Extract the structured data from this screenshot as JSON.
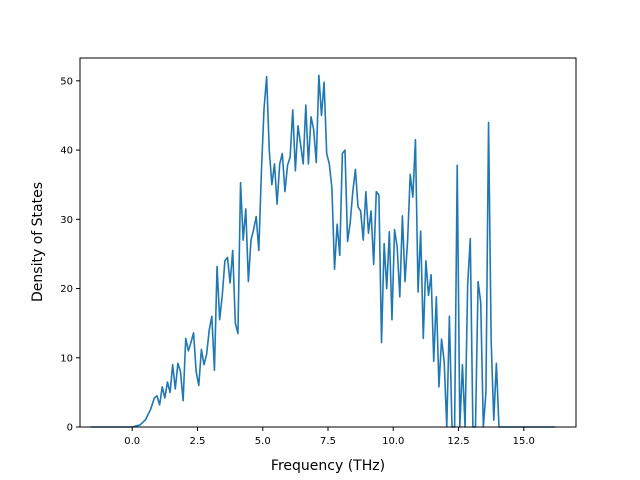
{
  "chart_data": {
    "type": "line",
    "title": "",
    "xlabel": "Frequency (THz)",
    "ylabel": "Density of States",
    "xlim": [
      -2.0,
      17.0
    ],
    "ylim": [
      0,
      53.3
    ],
    "xticks": [
      0.0,
      2.5,
      5.0,
      7.5,
      10.0,
      12.5,
      15.0
    ],
    "xtick_labels": [
      "0.0",
      "2.5",
      "5.0",
      "7.5",
      "10.0",
      "12.5",
      "15.0"
    ],
    "yticks": [
      0,
      10,
      20,
      30,
      40,
      50
    ],
    "ytick_labels": [
      "0",
      "10",
      "20",
      "30",
      "40",
      "50"
    ],
    "grid": false,
    "colors": {
      "line": "#1f77b4"
    },
    "series": [
      {
        "x": [
          -1.6,
          -0.8,
          0.0,
          0.3,
          0.5,
          0.7,
          0.85,
          0.95,
          1.05,
          1.15,
          1.25,
          1.35,
          1.45,
          1.55,
          1.65,
          1.75,
          1.85,
          1.95,
          2.05,
          2.15,
          2.25,
          2.35,
          2.45,
          2.55,
          2.65,
          2.75,
          2.85,
          2.95,
          3.05,
          3.15,
          3.25,
          3.35,
          3.45,
          3.55,
          3.65,
          3.75,
          3.85,
          3.95,
          4.05,
          4.15,
          4.25,
          4.35,
          4.45,
          4.55,
          4.65,
          4.75,
          4.85,
          4.95,
          5.05,
          5.15,
          5.25,
          5.35,
          5.45,
          5.55,
          5.65,
          5.75,
          5.85,
          5.95,
          6.05,
          6.15,
          6.25,
          6.35,
          6.45,
          6.55,
          6.65,
          6.75,
          6.85,
          6.95,
          7.05,
          7.15,
          7.25,
          7.35,
          7.45,
          7.55,
          7.65,
          7.75,
          7.85,
          7.95,
          8.05,
          8.15,
          8.25,
          8.35,
          8.45,
          8.55,
          8.65,
          8.75,
          8.85,
          8.95,
          9.05,
          9.15,
          9.25,
          9.35,
          9.45,
          9.55,
          9.65,
          9.75,
          9.85,
          9.95,
          10.05,
          10.15,
          10.25,
          10.35,
          10.45,
          10.55,
          10.65,
          10.75,
          10.85,
          10.95,
          11.05,
          11.15,
          11.25,
          11.35,
          11.45,
          11.55,
          11.65,
          11.75,
          11.85,
          11.95,
          12.05,
          12.15,
          12.25,
          12.35,
          12.45,
          12.55,
          12.65,
          12.75,
          12.85,
          12.95,
          13.05,
          13.15,
          13.25,
          13.35,
          13.45,
          13.55,
          13.65,
          13.75,
          13.85,
          13.95,
          14.05,
          14.3,
          15.0,
          16.2
        ],
        "y": [
          0,
          0,
          0,
          0.3,
          1.0,
          2.5,
          4.2,
          4.5,
          3.2,
          5.8,
          4.2,
          6.5,
          5.0,
          9.0,
          5.5,
          9.2,
          8.0,
          3.8,
          12.8,
          11.0,
          12.2,
          13.6,
          8.0,
          6.0,
          11.2,
          9.0,
          10.5,
          14.0,
          16.0,
          8.2,
          23.2,
          15.5,
          19.0,
          24.0,
          24.5,
          20.8,
          25.5,
          15.0,
          13.5,
          35.3,
          27.0,
          31.5,
          21.0,
          27.0,
          28.5,
          30.4,
          25.5,
          37.0,
          46.0,
          50.6,
          40.0,
          35.0,
          38.0,
          32.2,
          38.0,
          39.5,
          34.0,
          37.8,
          39.0,
          45.8,
          37.0,
          43.5,
          40.8,
          38.0,
          46.5,
          38.0,
          44.8,
          43.0,
          38.2,
          50.8,
          45.0,
          49.8,
          39.5,
          38.0,
          34.5,
          22.8,
          29.3,
          24.8,
          39.5,
          40.0,
          26.8,
          29.5,
          34.0,
          37.2,
          31.8,
          31.2,
          27.0,
          34.0,
          28.0,
          31.2,
          23.5,
          34.0,
          33.5,
          12.2,
          26.5,
          20.0,
          28.2,
          15.5,
          28.5,
          26.0,
          18.8,
          30.5,
          21.0,
          27.0,
          36.5,
          33.2,
          41.5,
          19.5,
          28.3,
          12.8,
          24.0,
          19.0,
          22.0,
          9.5,
          18.8,
          5.8,
          12.7,
          9.5,
          0.0,
          16.0,
          0.0,
          0.0,
          37.8,
          0.0,
          9.0,
          0.0,
          20.5,
          27.2,
          0.0,
          0.0,
          21.0,
          18.0,
          0.0,
          5.0,
          44.0,
          12.5,
          1.0,
          9.2,
          0.0,
          0,
          0,
          0
        ]
      }
    ]
  }
}
